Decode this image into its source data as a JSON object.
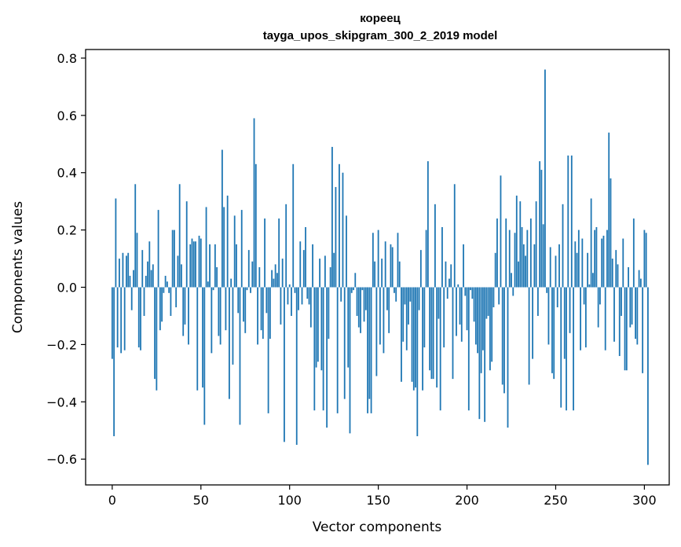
{
  "chart_data": {
    "type": "bar",
    "title_lines": [
      "кореец",
      "tayga_upos_skipgram_300_2_2019 model"
    ],
    "xlabel": "Vector components",
    "ylabel": "Components values",
    "xlim": [
      -15,
      314
    ],
    "ylim": [
      -0.69,
      0.83
    ],
    "x_ticks": [
      0,
      50,
      100,
      150,
      200,
      250,
      300
    ],
    "x_tick_labels": [
      "0",
      "50",
      "100",
      "150",
      "200",
      "250",
      "300"
    ],
    "y_ticks": [
      -0.6,
      -0.4,
      -0.2,
      0.0,
      0.2,
      0.4,
      0.6,
      0.8
    ],
    "y_tick_labels": [
      "−0.6",
      "−0.4",
      "−0.2",
      "0.0",
      "0.2",
      "0.4",
      "0.6",
      "0.8"
    ],
    "bar_color": "#1f77b4",
    "grid": false,
    "values": [
      -0.25,
      -0.52,
      0.31,
      -0.21,
      0.1,
      -0.23,
      0.12,
      -0.22,
      0.11,
      0.12,
      0.04,
      -0.08,
      0.06,
      0.36,
      0.19,
      -0.21,
      -0.22,
      0.13,
      -0.1,
      0.04,
      0.09,
      0.16,
      0.06,
      0.08,
      -0.32,
      -0.36,
      0.27,
      -0.15,
      -0.12,
      -0.02,
      0.04,
      0.02,
      -0.02,
      -0.1,
      0.2,
      0.2,
      -0.07,
      0.11,
      0.36,
      0.08,
      -0.17,
      -0.13,
      0.3,
      -0.2,
      0.15,
      0.17,
      0.16,
      0.16,
      -0.36,
      0.18,
      0.17,
      -0.35,
      -0.48,
      0.28,
      0.02,
      0.15,
      -0.23,
      -0.01,
      0.15,
      0.07,
      -0.17,
      -0.2,
      0.48,
      0.28,
      -0.15,
      0.32,
      -0.39,
      0.03,
      -0.27,
      0.25,
      0.15,
      -0.09,
      -0.48,
      0.27,
      -0.12,
      -0.16,
      -0.01,
      0.13,
      -0.02,
      0.09,
      0.59,
      0.43,
      -0.2,
      0.07,
      -0.15,
      -0.18,
      0.24,
      -0.09,
      -0.44,
      -0.18,
      0.06,
      0.03,
      0.08,
      0.05,
      0.24,
      -0.13,
      0.1,
      -0.54,
      0.29,
      -0.06,
      0.01,
      -0.1,
      0.43,
      -0.02,
      -0.55,
      -0.08,
      0.16,
      -0.06,
      0.13,
      0.21,
      -0.04,
      -0.06,
      -0.14,
      0.15,
      -0.43,
      -0.28,
      -0.26,
      0.1,
      -0.29,
      -0.43,
      0.11,
      -0.49,
      -0.18,
      0.07,
      0.49,
      0.12,
      0.35,
      -0.44,
      0.43,
      -0.05,
      0.4,
      -0.39,
      0.25,
      -0.28,
      -0.51,
      -0.02,
      -0.01,
      0.05,
      -0.1,
      -0.14,
      -0.16,
      -0.01,
      -0.12,
      -0.08,
      -0.44,
      -0.39,
      -0.44,
      0.19,
      0.09,
      -0.31,
      0.2,
      -0.2,
      0.1,
      -0.23,
      0.16,
      -0.08,
      -0.16,
      0.15,
      0.14,
      -0.02,
      -0.05,
      0.19,
      0.09,
      -0.33,
      -0.19,
      -0.06,
      -0.22,
      -0.13,
      -0.05,
      -0.33,
      -0.36,
      -0.35,
      -0.52,
      -0.08,
      0.13,
      -0.36,
      -0.21,
      0.2,
      0.44,
      -0.29,
      -0.32,
      -0.32,
      0.29,
      -0.35,
      -0.11,
      -0.43,
      0.21,
      -0.21,
      0.09,
      -0.04,
      0.03,
      0.08,
      -0.32,
      0.36,
      -0.17,
      0.01,
      -0.13,
      -0.19,
      0.15,
      -0.03,
      -0.15,
      -0.43,
      -0.01,
      -0.04,
      -0.12,
      -0.2,
      -0.23,
      -0.46,
      -0.3,
      -0.22,
      -0.47,
      -0.11,
      -0.1,
      -0.29,
      -0.26,
      -0.07,
      0.12,
      0.24,
      -0.06,
      0.39,
      -0.34,
      -0.37,
      0.24,
      -0.49,
      0.2,
      0.05,
      -0.03,
      0.19,
      0.32,
      0.09,
      0.3,
      0.21,
      0.15,
      0.11,
      0.2,
      -0.34,
      0.24,
      -0.25,
      0.15,
      0.3,
      -0.1,
      0.44,
      0.41,
      0.22,
      0.76,
      -0.02,
      -0.2,
      0.14,
      -0.3,
      -0.32,
      0.11,
      -0.07,
      0.15,
      -0.42,
      0.29,
      -0.25,
      -0.43,
      0.46,
      -0.16,
      0.46,
      -0.43,
      0.16,
      0.12,
      0.2,
      -0.22,
      0.17,
      -0.06,
      -0.21,
      0.12,
      0.01,
      0.31,
      0.05,
      0.2,
      0.21,
      -0.14,
      -0.06,
      0.17,
      0.18,
      -0.22,
      0.2,
      0.54,
      0.38,
      0.1,
      -0.19,
      0.13,
      0.08,
      -0.24,
      -0.1,
      0.17,
      -0.29,
      -0.29,
      0.07,
      -0.14,
      -0.13,
      0.24,
      -0.18,
      -0.2,
      0.06,
      0.03,
      -0.3,
      0.2,
      0.19,
      -0.62
    ]
  }
}
